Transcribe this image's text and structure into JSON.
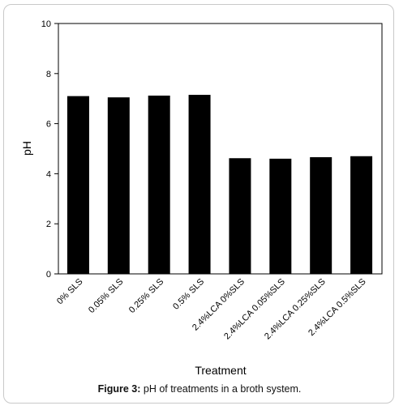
{
  "chart_data": {
    "type": "bar",
    "categories": [
      "0% SLS",
      "0.05% SLS",
      "0.25% SLS",
      "0.5% SLS",
      "2.4%LCA 0%SLS",
      "2.4%LCA 0.05%SLS",
      "2.4%LCA 0.25%SLS",
      "2.4%LCA 0.5%SLS"
    ],
    "values": [
      7.1,
      7.05,
      7.12,
      7.15,
      4.62,
      4.6,
      4.66,
      4.7
    ],
    "title": "",
    "xlabel": "Treatment",
    "ylabel": "pH",
    "ylim": [
      0,
      10
    ],
    "yticks": [
      "0",
      "2",
      "4",
      "6",
      "8",
      "10"
    ],
    "grid": false,
    "bar_color": "#000000"
  },
  "caption": {
    "label": "Figure 3:",
    "text": " pH of treatments in a broth system."
  }
}
